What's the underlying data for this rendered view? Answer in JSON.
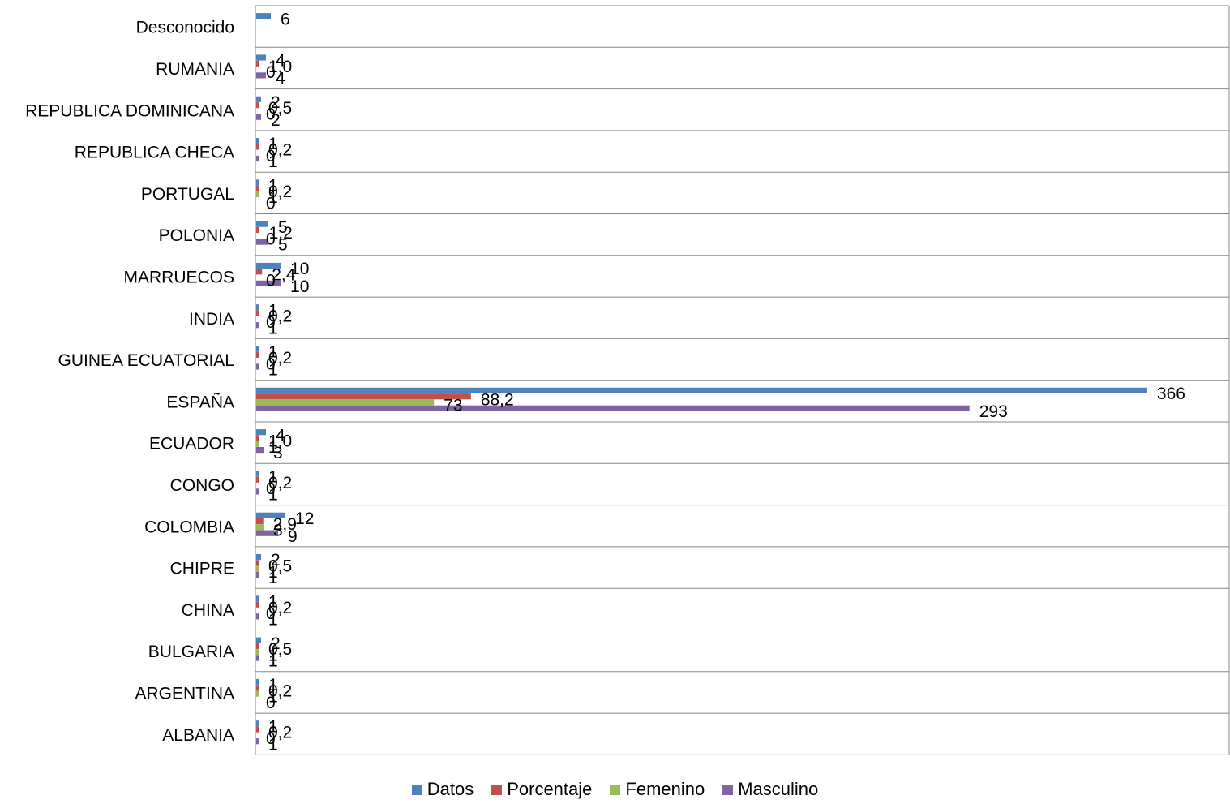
{
  "chart_data": {
    "type": "bar",
    "orientation": "horizontal",
    "title": "",
    "xlabel": "",
    "ylabel": "",
    "xlim": [
      0,
      400
    ],
    "grid": "horizontal category separators",
    "legend_position": "bottom",
    "categories": [
      "Desconocido",
      "RUMANIA",
      "REPUBLICA DOMINICANA",
      "REPUBLICA CHECA",
      "PORTUGAL",
      "POLONIA",
      "MARRUECOS",
      "INDIA",
      "GUINEA ECUATORIAL",
      "ESPAÑA",
      "ECUADOR",
      "CONGO",
      "COLOMBIA",
      "CHIPRE",
      "CHINA",
      "BULGARIA",
      "ARGENTINA",
      "ALBANIA"
    ],
    "series": [
      {
        "name": "Datos",
        "color": "#4F81BD",
        "values": [
          6,
          4,
          2,
          1,
          1,
          5,
          10,
          1,
          1,
          366,
          4,
          1,
          12,
          2,
          1,
          2,
          1,
          1
        ],
        "labels": [
          "6",
          "4",
          "2",
          "1",
          "1",
          "5",
          "10",
          "1",
          "1",
          "366",
          "4",
          "1",
          "12",
          "2",
          "1",
          "2",
          "1",
          "1"
        ]
      },
      {
        "name": "Porcentaje",
        "color": "#C0504D",
        "values": [
          null,
          1.0,
          0.5,
          0.2,
          0.2,
          1.2,
          2.4,
          0.2,
          0.2,
          88.2,
          1.0,
          0.2,
          2.9,
          0.5,
          0.2,
          0.5,
          0.2,
          0.2
        ],
        "labels": [
          "",
          "1,0",
          "0,5",
          "0,2",
          "0,2",
          "1,2",
          "2,4",
          "0,2",
          "0,2",
          "88,2",
          "1,0",
          "0,2",
          "2,9",
          "0,5",
          "0,2",
          "0,5",
          "0,2",
          "0,2"
        ]
      },
      {
        "name": "Femenino",
        "color": "#9BBB59",
        "values": [
          null,
          0,
          0,
          0,
          1,
          0,
          0,
          0,
          0,
          73,
          1,
          0,
          3,
          1,
          0,
          1,
          1,
          0
        ],
        "labels": [
          "",
          "0",
          "0",
          "0",
          "1",
          "0",
          "0",
          "0",
          "0",
          "73",
          "1",
          "0",
          "3",
          "1",
          "0",
          "1",
          "1",
          "0"
        ]
      },
      {
        "name": "Masculino",
        "color": "#8064A2",
        "values": [
          null,
          4,
          2,
          1,
          0,
          5,
          10,
          1,
          1,
          293,
          3,
          1,
          9,
          1,
          1,
          1,
          0,
          1
        ],
        "labels": [
          "",
          "4",
          "2",
          "1",
          "0",
          "5",
          "10",
          "1",
          "1",
          "293",
          "3",
          "1",
          "9",
          "1",
          "1",
          "1",
          "0",
          "1"
        ]
      }
    ]
  }
}
